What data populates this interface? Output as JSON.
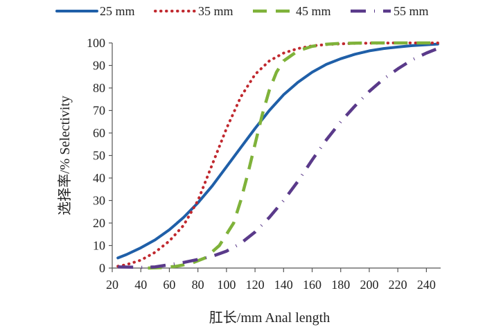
{
  "chart_data": {
    "type": "line",
    "title": "",
    "xlabel": "肛长/mm Anal length",
    "ylabel": "选择率/% Selectivity",
    "xlim": [
      20,
      250
    ],
    "ylim": [
      0,
      100
    ],
    "xticks": [
      20,
      40,
      60,
      80,
      100,
      120,
      140,
      160,
      180,
      200,
      220,
      240
    ],
    "yticks": [
      0,
      10,
      20,
      30,
      40,
      50,
      60,
      70,
      80,
      90,
      100
    ],
    "grid": false,
    "legend_position": "top",
    "series": [
      {
        "name": "25 mm",
        "color": "#1f5fa8",
        "style": "solid",
        "x": [
          24,
          30,
          40,
          50,
          60,
          70,
          80,
          90,
          100,
          110,
          120,
          130,
          140,
          150,
          160,
          170,
          180,
          190,
          200,
          210,
          220,
          230,
          240,
          248
        ],
        "y": [
          4.5,
          6,
          9,
          12.5,
          17,
          22.5,
          29,
          36.5,
          45,
          53.5,
          62,
          70,
          77,
          82.5,
          87,
          90.5,
          93,
          95,
          96.5,
          97.5,
          98.2,
          98.8,
          99.2,
          99.5
        ]
      },
      {
        "name": "35 mm",
        "color": "#c0282e",
        "style": "dotted",
        "x": [
          24,
          30,
          40,
          50,
          60,
          70,
          80,
          90,
          100,
          110,
          120,
          130,
          140,
          150,
          160,
          170,
          180,
          190,
          200,
          220,
          240,
          248
        ],
        "y": [
          0.8,
          1.5,
          3.5,
          7,
          12,
          19,
          30,
          46,
          62,
          76,
          86,
          92,
          95.5,
          97.5,
          98.7,
          99.3,
          99.6,
          99.8,
          99.9,
          100,
          100,
          100
        ]
      },
      {
        "name": "45 mm",
        "color": "#7fb23a",
        "style": "dashed",
        "x": [
          45,
          55,
          65,
          75,
          85,
          95,
          105,
          110,
          115,
          120,
          125,
          130,
          135,
          140,
          150,
          160,
          170,
          180,
          200,
          220,
          248
        ],
        "y": [
          0,
          0.2,
          0.8,
          2,
          4.5,
          10,
          20,
          30,
          42,
          55,
          68,
          79,
          87,
          92,
          96.5,
          98.5,
          99.4,
          99.8,
          100,
          100,
          100
        ]
      },
      {
        "name": "55 mm",
        "color": "#5a3a8a",
        "style": "dashdot",
        "x": [
          24,
          40,
          50,
          60,
          70,
          80,
          90,
          100,
          110,
          120,
          130,
          140,
          150,
          160,
          170,
          180,
          190,
          200,
          210,
          220,
          230,
          240,
          248
        ],
        "y": [
          0.5,
          0.3,
          0.5,
          1.5,
          2.5,
          3.8,
          5.2,
          7.5,
          11,
          16,
          22.5,
          30,
          38.5,
          48,
          57,
          65,
          72,
          78.5,
          84,
          88.5,
          92.5,
          95.5,
          97.5
        ]
      }
    ]
  }
}
